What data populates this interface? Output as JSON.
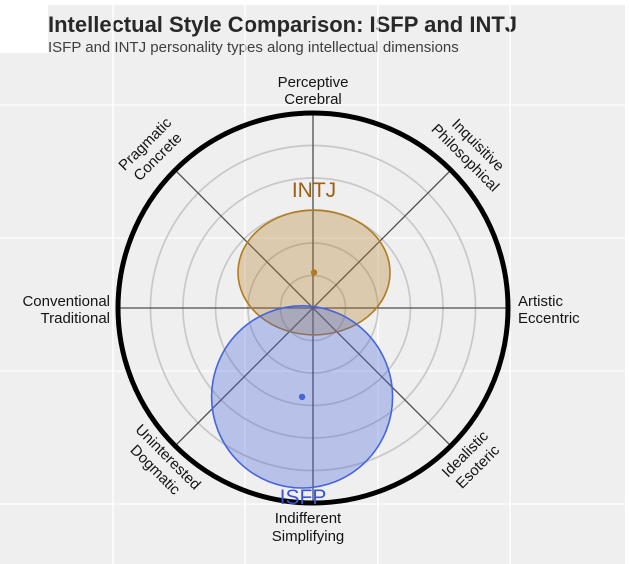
{
  "header": {
    "title": "Intellectual Style Comparison: ISFP and INTJ",
    "subtitle": "ISFP and INTJ personality types along intellectual dimensions"
  },
  "chart_data": {
    "type": "scatter",
    "subtype": "personality-circumplex",
    "title": "Intellectual Style Comparison: ISFP and INTJ",
    "description": "Two personality types shown as a mean point with a shaded spread ellipse on an 8-direction intellectual-style circumplex. Coordinates are fractions of the outer rim radius; +y points toward Perceptive/Cerebral, +x toward Artistic/Eccentric.",
    "axes": [
      {
        "direction": "N",
        "line1": "Perceptive",
        "line2": "Cerebral"
      },
      {
        "direction": "NE",
        "line1": "Inquisitive",
        "line2": "Philosophical"
      },
      {
        "direction": "E",
        "line1": "Artistic",
        "line2": "Eccentric"
      },
      {
        "direction": "SE",
        "line1": "Idealistic",
        "line2": "Esoteric"
      },
      {
        "direction": "S",
        "line1": "Indifferent",
        "line2": "Simplifying"
      },
      {
        "direction": "SW",
        "line1": "Uninterested",
        "line2": "Dogmatic"
      },
      {
        "direction": "W",
        "line1": "Conventional",
        "line2": "Traditional"
      },
      {
        "direction": "NW",
        "line1": "Pragmatic",
        "line2": "Concrete"
      }
    ],
    "series": [
      {
        "name": "INTJ",
        "center": {
          "x": 0.005,
          "y": 0.182
        },
        "spread": {
          "rx": 0.39,
          "ry": 0.32
        },
        "stroke": "#b07c22",
        "fill": "rgba(176,124,34,0.32)",
        "label_color": "#a05f10"
      },
      {
        "name": "ISFP",
        "center": {
          "x": -0.056,
          "y": -0.456
        },
        "spread": {
          "rx": 0.464,
          "ry": 0.467
        },
        "stroke": "#4565dd",
        "fill": "rgba(69,101,221,0.32)",
        "label_color": "#3b55d6"
      }
    ],
    "layout": {
      "rings_frac": [
        0.1667,
        0.3333,
        0.5,
        0.6667,
        0.8333
      ],
      "spoke_count": 8,
      "ring_color": "#c8c8c8",
      "spoke_color": "#4c4c4c",
      "outer_color": "#000000",
      "outer_width": 5,
      "panel_color": "#efefef",
      "axis_label_color": "#141414",
      "grid": "polar",
      "legend": "none"
    }
  }
}
